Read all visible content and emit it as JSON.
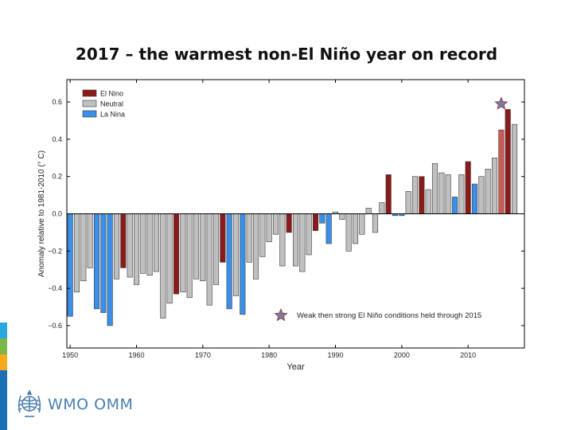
{
  "slide": {
    "title": "2017 – the warmest non-El Niño year on record",
    "logo_text": "WMO OMM",
    "stripe_colors": [
      "#29a8df",
      "#7ab648",
      "#f7a81b",
      "#1a6fb5"
    ]
  },
  "chart_data": {
    "type": "bar",
    "title": "",
    "xlabel": "Year",
    "ylabel": "Anomaly relative to 1981-2010 (° C)",
    "xlim": [
      1949.5,
      2018.5
    ],
    "ylim": [
      -0.72,
      0.72
    ],
    "xticks": [
      1950,
      1960,
      1970,
      1980,
      1990,
      2000,
      2010
    ],
    "yticks": [
      -0.6,
      -0.4,
      -0.2,
      0.0,
      0.2,
      0.4,
      0.6
    ],
    "ytick_labels": [
      "−0.6",
      "−0.4",
      "−0.2",
      "0.0",
      "0.2",
      "0.4",
      "0.6"
    ],
    "legend": {
      "position": "top-left",
      "entries": [
        {
          "name": "El Nino",
          "color": "#8b1a1a"
        },
        {
          "name": "Neutral",
          "color": "#c0c0c0"
        },
        {
          "name": "La Nina",
          "color": "#3a8fe8"
        }
      ]
    },
    "colors": {
      "nino": "#8b1a1a",
      "neutral": "#c0c0c0",
      "nina": "#3a8fe8",
      "nino_light": "#d05656"
    },
    "years": [
      1950,
      1951,
      1952,
      1953,
      1954,
      1955,
      1956,
      1957,
      1958,
      1959,
      1960,
      1961,
      1962,
      1963,
      1964,
      1965,
      1966,
      1967,
      1968,
      1969,
      1970,
      1971,
      1972,
      1973,
      1974,
      1975,
      1976,
      1977,
      1978,
      1979,
      1980,
      1981,
      1982,
      1983,
      1984,
      1985,
      1986,
      1987,
      1988,
      1989,
      1990,
      1991,
      1992,
      1993,
      1994,
      1995,
      1996,
      1997,
      1998,
      1999,
      2000,
      2001,
      2002,
      2003,
      2004,
      2005,
      2006,
      2007,
      2008,
      2009,
      2010,
      2011,
      2012,
      2013,
      2014,
      2015,
      2016,
      2017
    ],
    "values": [
      -0.55,
      -0.42,
      -0.36,
      -0.29,
      -0.51,
      -0.53,
      -0.6,
      -0.35,
      -0.29,
      -0.34,
      -0.38,
      -0.32,
      -0.33,
      -0.31,
      -0.56,
      -0.48,
      -0.43,
      -0.42,
      -0.45,
      -0.35,
      -0.36,
      -0.49,
      -0.38,
      -0.26,
      -0.51,
      -0.44,
      -0.54,
      -0.26,
      -0.35,
      -0.23,
      -0.15,
      -0.11,
      -0.28,
      -0.1,
      -0.28,
      -0.31,
      -0.22,
      -0.09,
      -0.05,
      -0.16,
      0.01,
      -0.03,
      -0.2,
      -0.16,
      -0.11,
      0.03,
      -0.1,
      0.06,
      0.21,
      -0.01,
      -0.01,
      0.12,
      0.2,
      0.2,
      0.13,
      0.27,
      0.22,
      0.21,
      0.09,
      0.21,
      0.28,
      0.16,
      0.2,
      0.24,
      0.3,
      0.45,
      0.56,
      0.48
    ],
    "enso": [
      "nina",
      "neutral",
      "neutral",
      "neutral",
      "nina",
      "nina",
      "nina",
      "neutral",
      "nino",
      "neutral",
      "neutral",
      "neutral",
      "neutral",
      "neutral",
      "neutral",
      "neutral",
      "nino",
      "neutral",
      "neutral",
      "neutral",
      "neutral",
      "neutral",
      "neutral",
      "nino",
      "nina",
      "neutral",
      "nina",
      "neutral",
      "neutral",
      "neutral",
      "neutral",
      "neutral",
      "neutral",
      "nino",
      "neutral",
      "neutral",
      "neutral",
      "nino",
      "nina",
      "nina",
      "neutral",
      "neutral",
      "neutral",
      "neutral",
      "neutral",
      "neutral",
      "neutral",
      "neutral",
      "nino",
      "nina",
      "nina",
      "neutral",
      "neutral",
      "nino",
      "neutral",
      "neutral",
      "neutral",
      "neutral",
      "nina",
      "neutral",
      "nino",
      "nina",
      "neutral",
      "neutral",
      "neutral",
      "nino_light",
      "nino",
      "neutral"
    ],
    "annotation": {
      "year": 2015,
      "value": 0.59,
      "marker": "star-icon",
      "star_color": "#6f7fa8",
      "star_edge": "#b03030",
      "text": "Weak then strong El Niño conditions held through 2015"
    }
  }
}
